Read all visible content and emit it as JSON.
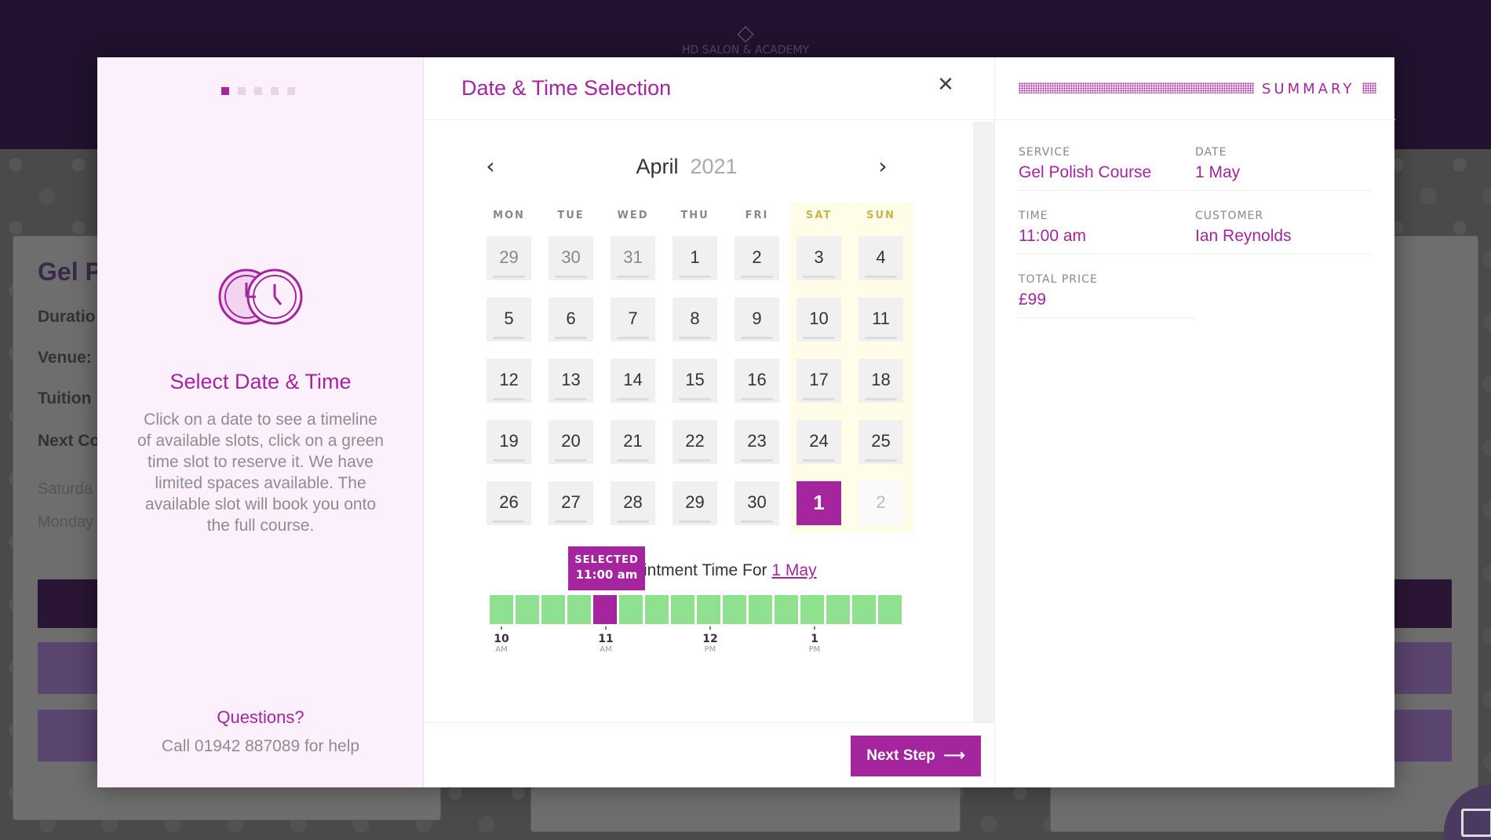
{
  "background": {
    "logo_text": "HD SALON & ACADEMY",
    "page_title": "Gel P",
    "labels": [
      "Duratio",
      "Venue:",
      "Tuition",
      "Next Co"
    ],
    "days": [
      "Saturda",
      "Monday"
    ]
  },
  "modal": {
    "steps": [
      {
        "active": true
      },
      {
        "active": false
      },
      {
        "active": false
      },
      {
        "active": false
      },
      {
        "active": false
      }
    ],
    "left": {
      "icon": "clocks-icon",
      "title": "Select Date & Time",
      "description": "Click on a date to see a timeline of available slots, click on a green time slot to reserve it. We have limited spaces available. The available slot will book you onto the full course.",
      "questions_label": "Questions?",
      "call_text": "Call 01942 887089 for help"
    },
    "center": {
      "title": "Date & Time Selection",
      "close_icon": "close-icon",
      "month": "April",
      "year": "2021",
      "weekdays": [
        "MON",
        "TUE",
        "WED",
        "THU",
        "FRI",
        "SAT",
        "SUN"
      ],
      "weeks": [
        [
          "29",
          "30",
          "31",
          "1",
          "2",
          "3",
          "4"
        ],
        [
          "5",
          "6",
          "7",
          "8",
          "9",
          "10",
          "11"
        ],
        [
          "12",
          "13",
          "14",
          "15",
          "16",
          "17",
          "18"
        ],
        [
          "19",
          "20",
          "21",
          "22",
          "23",
          "24",
          "25"
        ],
        [
          "26",
          "27",
          "28",
          "29",
          "30",
          "1",
          "2"
        ]
      ],
      "selected_day": "1",
      "time_label_prefix": "intment Time For",
      "time_label_date": "1 May",
      "selected_badge_label": "SELECTED",
      "selected_badge_time": "11:00 am",
      "slot_count": 16,
      "selected_slot_index": 4,
      "ticks": [
        {
          "hour": "10",
          "period": "AM"
        },
        {
          "hour": "11",
          "period": "AM"
        },
        {
          "hour": "12",
          "period": "PM"
        },
        {
          "hour": "1",
          "period": "PM"
        }
      ],
      "next_button": "Next Step",
      "next_icon": "arrow-right-icon"
    },
    "summary": {
      "title": "SUMMARY",
      "service_label": "SERVICE",
      "service_value": "Gel Polish Course",
      "date_label": "DATE",
      "date_value": "1 May",
      "time_label": "TIME",
      "time_value": "11:00 am",
      "customer_label": "CUSTOMER",
      "customer_value": "Ian Reynolds",
      "price_label": "TOTAL PRICE",
      "price_value": "£99"
    }
  },
  "colors": {
    "accent": "#a5259f",
    "slot_available": "#8fe08f",
    "header_bg": "#22122f"
  }
}
